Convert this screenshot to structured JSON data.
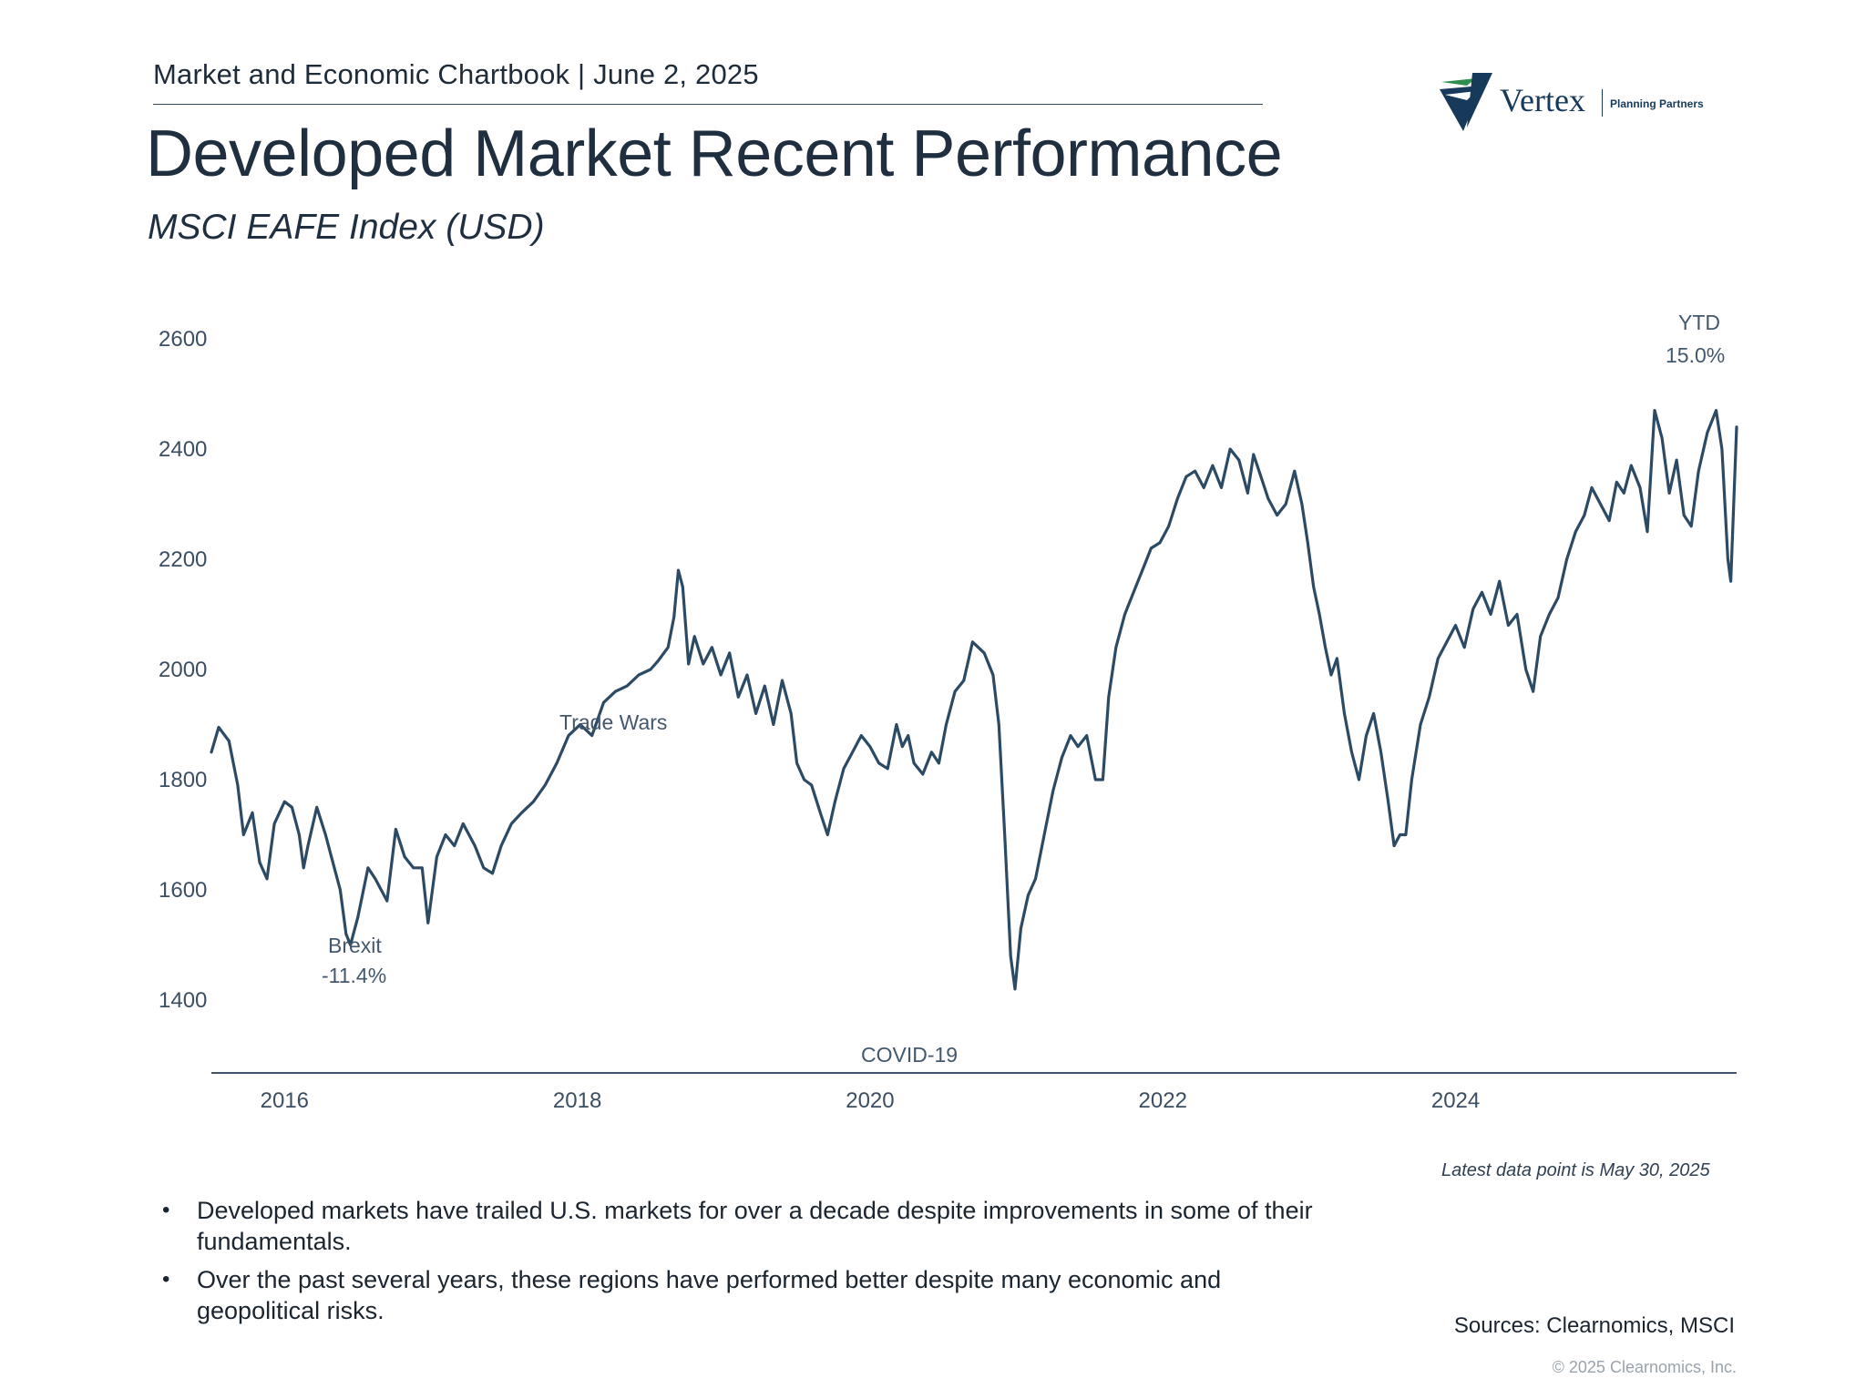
{
  "header": {
    "chartbook_line": "Market and Economic Chartbook | June 2, 2025"
  },
  "logo": {
    "name": "Vertex",
    "tagline": "Planning Partners"
  },
  "title": "Developed Market Recent Performance",
  "subtitle": "MSCI EAFE Index (USD)",
  "chart_data": {
    "type": "line",
    "title": "Developed Market Recent Performance",
    "subtitle": "MSCI EAFE Index (USD)",
    "xlabel": "",
    "ylabel": "",
    "xlim": [
      2015.5,
      2025.92
    ],
    "ylim": [
      1280,
      2640
    ],
    "y_ticks": [
      1400,
      1600,
      1800,
      2000,
      2200,
      2400,
      2600
    ],
    "x_ticks": [
      2016,
      2018,
      2020,
      2022,
      2024
    ],
    "grid": false,
    "series": [
      {
        "name": "MSCI EAFE Index (USD)",
        "color": "#2c4a63",
        "points": [
          [
            2015.5,
            1850
          ],
          [
            2015.55,
            1895
          ],
          [
            2015.62,
            1870
          ],
          [
            2015.68,
            1790
          ],
          [
            2015.72,
            1700
          ],
          [
            2015.78,
            1740
          ],
          [
            2015.83,
            1650
          ],
          [
            2015.88,
            1620
          ],
          [
            2015.93,
            1720
          ],
          [
            2016.0,
            1760
          ],
          [
            2016.05,
            1750
          ],
          [
            2016.1,
            1700
          ],
          [
            2016.13,
            1640
          ],
          [
            2016.16,
            1680
          ],
          [
            2016.22,
            1750
          ],
          [
            2016.28,
            1700
          ],
          [
            2016.32,
            1660
          ],
          [
            2016.38,
            1600
          ],
          [
            2016.42,
            1520
          ],
          [
            2016.45,
            1500
          ],
          [
            2016.5,
            1550
          ],
          [
            2016.57,
            1640
          ],
          [
            2016.62,
            1620
          ],
          [
            2016.7,
            1580
          ],
          [
            2016.76,
            1710
          ],
          [
            2016.82,
            1660
          ],
          [
            2016.88,
            1640
          ],
          [
            2016.94,
            1640
          ],
          [
            2016.98,
            1540
          ],
          [
            2017.04,
            1660
          ],
          [
            2017.1,
            1700
          ],
          [
            2017.16,
            1680
          ],
          [
            2017.22,
            1720
          ],
          [
            2017.3,
            1680
          ],
          [
            2017.36,
            1640
          ],
          [
            2017.42,
            1630
          ],
          [
            2017.48,
            1680
          ],
          [
            2017.55,
            1720
          ],
          [
            2017.62,
            1740
          ],
          [
            2017.7,
            1760
          ],
          [
            2017.78,
            1790
          ],
          [
            2017.86,
            1830
          ],
          [
            2017.94,
            1880
          ],
          [
            2018.02,
            1900
          ],
          [
            2018.1,
            1880
          ],
          [
            2018.18,
            1940
          ],
          [
            2018.26,
            1960
          ],
          [
            2018.34,
            1970
          ],
          [
            2018.42,
            1990
          ],
          [
            2018.5,
            2000
          ],
          [
            2018.55,
            2015
          ],
          [
            2018.62,
            2040
          ],
          [
            2018.66,
            2095
          ],
          [
            2018.69,
            2180
          ],
          [
            2018.72,
            2150
          ],
          [
            2018.76,
            2010
          ],
          [
            2018.8,
            2060
          ],
          [
            2018.86,
            2010
          ],
          [
            2018.92,
            2040
          ],
          [
            2018.98,
            1990
          ],
          [
            2019.04,
            2030
          ],
          [
            2019.1,
            1950
          ],
          [
            2019.16,
            1990
          ],
          [
            2019.22,
            1920
          ],
          [
            2019.28,
            1970
          ],
          [
            2019.34,
            1900
          ],
          [
            2019.4,
            1980
          ],
          [
            2019.46,
            1920
          ],
          [
            2019.5,
            1830
          ],
          [
            2019.55,
            1800
          ],
          [
            2019.6,
            1790
          ],
          [
            2019.66,
            1740
          ],
          [
            2019.71,
            1700
          ],
          [
            2019.76,
            1760
          ],
          [
            2019.82,
            1820
          ],
          [
            2019.88,
            1850
          ],
          [
            2019.94,
            1880
          ],
          [
            2020.0,
            1860
          ],
          [
            2020.06,
            1830
          ],
          [
            2020.12,
            1820
          ],
          [
            2020.18,
            1900
          ],
          [
            2020.22,
            1860
          ],
          [
            2020.26,
            1880
          ],
          [
            2020.3,
            1830
          ],
          [
            2020.36,
            1810
          ],
          [
            2020.42,
            1850
          ],
          [
            2020.47,
            1830
          ],
          [
            2020.52,
            1900
          ],
          [
            2020.58,
            1960
          ],
          [
            2020.64,
            1980
          ],
          [
            2020.7,
            2050
          ],
          [
            2020.78,
            2030
          ],
          [
            2020.84,
            1990
          ],
          [
            2020.88,
            1900
          ],
          [
            2020.92,
            1700
          ],
          [
            2020.96,
            1480
          ],
          [
            2020.99,
            1420
          ],
          [
            2021.03,
            1530
          ],
          [
            2021.08,
            1590
          ],
          [
            2021.13,
            1620
          ],
          [
            2021.19,
            1700
          ],
          [
            2021.25,
            1780
          ],
          [
            2021.31,
            1840
          ],
          [
            2021.37,
            1880
          ],
          [
            2021.42,
            1860
          ],
          [
            2021.48,
            1880
          ],
          [
            2021.54,
            1800
          ],
          [
            2021.59,
            1800
          ],
          [
            2021.63,
            1950
          ],
          [
            2021.68,
            2040
          ],
          [
            2021.74,
            2100
          ],
          [
            2021.8,
            2140
          ],
          [
            2021.86,
            2180
          ],
          [
            2021.92,
            2220
          ],
          [
            2021.98,
            2230
          ],
          [
            2022.04,
            2260
          ],
          [
            2022.1,
            2310
          ],
          [
            2022.16,
            2350
          ],
          [
            2022.22,
            2360
          ],
          [
            2022.28,
            2330
          ],
          [
            2022.34,
            2370
          ],
          [
            2022.4,
            2330
          ],
          [
            2022.46,
            2400
          ],
          [
            2022.52,
            2380
          ],
          [
            2022.58,
            2320
          ],
          [
            2022.62,
            2390
          ],
          [
            2022.67,
            2350
          ],
          [
            2022.72,
            2310
          ],
          [
            2022.78,
            2280
          ],
          [
            2022.84,
            2300
          ],
          [
            2022.9,
            2360
          ],
          [
            2022.95,
            2300
          ],
          [
            2022.99,
            2230
          ],
          [
            2023.03,
            2150
          ],
          [
            2023.07,
            2100
          ],
          [
            2023.11,
            2040
          ],
          [
            2023.15,
            1990
          ],
          [
            2023.19,
            2020
          ],
          [
            2023.24,
            1920
          ],
          [
            2023.29,
            1850
          ],
          [
            2023.34,
            1800
          ],
          [
            2023.39,
            1880
          ],
          [
            2023.44,
            1920
          ],
          [
            2023.49,
            1850
          ],
          [
            2023.54,
            1760
          ],
          [
            2023.58,
            1680
          ],
          [
            2023.62,
            1700
          ],
          [
            2023.66,
            1700
          ],
          [
            2023.7,
            1800
          ],
          [
            2023.76,
            1900
          ],
          [
            2023.82,
            1950
          ],
          [
            2023.88,
            2020
          ],
          [
            2023.94,
            2050
          ],
          [
            2024.0,
            2080
          ],
          [
            2024.06,
            2040
          ],
          [
            2024.12,
            2110
          ],
          [
            2024.18,
            2140
          ],
          [
            2024.24,
            2100
          ],
          [
            2024.3,
            2160
          ],
          [
            2024.36,
            2080
          ],
          [
            2024.42,
            2100
          ],
          [
            2024.48,
            2000
          ],
          [
            2024.53,
            1960
          ],
          [
            2024.58,
            2060
          ],
          [
            2024.64,
            2100
          ],
          [
            2024.7,
            2130
          ],
          [
            2024.76,
            2200
          ],
          [
            2024.82,
            2250
          ],
          [
            2024.88,
            2280
          ],
          [
            2024.93,
            2330
          ],
          [
            2024.99,
            2300
          ],
          [
            2025.05,
            2270
          ],
          [
            2025.1,
            2340
          ],
          [
            2025.15,
            2320
          ],
          [
            2025.2,
            2370
          ],
          [
            2025.26,
            2330
          ],
          [
            2025.31,
            2250
          ],
          [
            2025.36,
            2470
          ],
          [
            2025.41,
            2420
          ],
          [
            2025.46,
            2320
          ],
          [
            2025.51,
            2380
          ],
          [
            2025.56,
            2280
          ],
          [
            2025.61,
            2260
          ],
          [
            2025.66,
            2360
          ],
          [
            2025.72,
            2430
          ],
          [
            2025.78,
            2470
          ],
          [
            2025.82,
            2400
          ],
          [
            2025.86,
            2200
          ],
          [
            2025.88,
            2160
          ],
          [
            2025.9,
            2300
          ],
          [
            2025.92,
            2440
          ]
        ]
      }
    ],
    "annotations": [
      {
        "label": "Brexit",
        "value_label": "-11.4%"
      },
      {
        "label": "Trade Wars"
      },
      {
        "label": "COVID-19"
      },
      {
        "label": "YTD",
        "value_label": "15.0%"
      }
    ],
    "x_tick_labels": [
      "2016",
      "2018",
      "2020",
      "2022",
      "2024"
    ],
    "y_tick_labels": [
      "2600",
      "2400",
      "2200",
      "2000",
      "1800",
      "1600",
      "1400"
    ]
  },
  "note": "Latest data point is May 30, 2025",
  "bullets": [
    "Developed markets have trailed U.S. markets for over a decade despite improvements in some of their fundamentals.",
    "Over the past several years, these regions have performed better despite many economic and geopolitical risks."
  ],
  "sources": "Sources: Clearnomics, MSCI",
  "copyright": "© 2025 Clearnomics, Inc."
}
